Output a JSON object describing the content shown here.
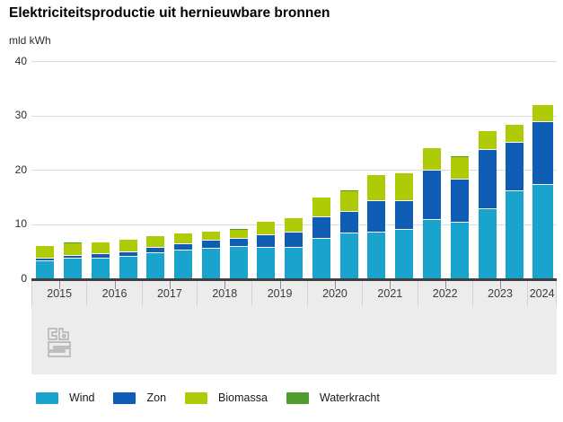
{
  "title": "Elektriciteitsproductie uit hernieuwbare bronnen",
  "unit_label": "mld kWh",
  "colors": {
    "wind": "#1aa3cd",
    "zon": "#0f5db4",
    "biomassa": "#afcb05",
    "waterkracht": "#4f9e2d",
    "gridline": "#dcdcdc",
    "baseline": "#3d4043",
    "footer_band": "#ececec"
  },
  "chart_data": {
    "type": "bar",
    "stacked": true,
    "title": "Elektriciteitsproductie uit hernieuwbare bronnen",
    "ylabel": "mld kWh",
    "ylim": [
      0,
      40
    ],
    "yticks": [
      0,
      10,
      20,
      30,
      40
    ],
    "grid": "horizontal",
    "legend_position": "bottom",
    "note": "two half-year bars per year label; 2024 shows one bar",
    "series_order": [
      "Wind",
      "Zon",
      "Biomassa",
      "Waterkracht"
    ],
    "years": [
      {
        "label": "2015",
        "bars": [
          {
            "Wind": 3.2,
            "Zon": 0.5,
            "Biomassa": 2.2,
            "Waterkracht": 0.05
          },
          {
            "Wind": 3.6,
            "Zon": 0.6,
            "Biomassa": 2.3,
            "Waterkracht": 0.05
          }
        ]
      },
      {
        "label": "2016",
        "bars": [
          {
            "Wind": 3.7,
            "Zon": 0.7,
            "Biomassa": 2.2,
            "Waterkracht": 0.05
          },
          {
            "Wind": 4.0,
            "Zon": 0.8,
            "Biomassa": 2.3,
            "Waterkracht": 0.05
          }
        ]
      },
      {
        "label": "2017",
        "bars": [
          {
            "Wind": 4.6,
            "Zon": 1.1,
            "Biomassa": 2.0,
            "Waterkracht": 0.05
          },
          {
            "Wind": 5.1,
            "Zon": 1.2,
            "Biomassa": 1.9,
            "Waterkracht": 0.05
          }
        ]
      },
      {
        "label": "2018",
        "bars": [
          {
            "Wind": 5.5,
            "Zon": 1.4,
            "Biomassa": 1.7,
            "Waterkracht": 0.05
          },
          {
            "Wind": 5.8,
            "Zon": 1.5,
            "Biomassa": 1.7,
            "Waterkracht": 0.05
          }
        ]
      },
      {
        "label": "2019",
        "bars": [
          {
            "Wind": 5.6,
            "Zon": 2.3,
            "Biomassa": 2.5,
            "Waterkracht": 0.05
          },
          {
            "Wind": 5.7,
            "Zon": 2.7,
            "Biomassa": 2.6,
            "Waterkracht": 0.05
          }
        ]
      },
      {
        "label": "2020",
        "bars": [
          {
            "Wind": 7.2,
            "Zon": 4.0,
            "Biomassa": 3.7,
            "Waterkracht": 0.05
          },
          {
            "Wind": 8.2,
            "Zon": 4.0,
            "Biomassa": 3.9,
            "Waterkracht": 0.05
          }
        ]
      },
      {
        "label": "2021",
        "bars": [
          {
            "Wind": 8.5,
            "Zon": 5.8,
            "Biomassa": 4.7,
            "Waterkracht": 0.05
          },
          {
            "Wind": 9.0,
            "Zon": 5.3,
            "Biomassa": 5.0,
            "Waterkracht": 0.05
          }
        ]
      },
      {
        "label": "2022",
        "bars": [
          {
            "Wind": 10.7,
            "Zon": 9.2,
            "Biomassa": 4.1,
            "Waterkracht": 0.05
          },
          {
            "Wind": 10.2,
            "Zon": 8.0,
            "Biomassa": 4.2,
            "Waterkracht": 0.05
          }
        ]
      },
      {
        "label": "2023",
        "bars": [
          {
            "Wind": 12.8,
            "Zon": 10.9,
            "Biomassa": 3.4,
            "Waterkracht": 0.05
          },
          {
            "Wind": 16.0,
            "Zon": 9.0,
            "Biomassa": 3.2,
            "Waterkracht": 0.05
          }
        ]
      },
      {
        "label": "2024",
        "bars": [
          {
            "Wind": 17.2,
            "Zon": 11.5,
            "Biomassa": 3.2,
            "Waterkracht": 0.05
          }
        ]
      }
    ]
  },
  "legend": {
    "items": [
      {
        "label": "Wind",
        "color": "#1aa3cd"
      },
      {
        "label": "Zon",
        "color": "#0f5db4"
      },
      {
        "label": "Biomassa",
        "color": "#afcb05"
      },
      {
        "label": "Waterkracht",
        "color": "#4f9e2d"
      }
    ]
  },
  "footer": {
    "logo": "cbs-logo"
  }
}
